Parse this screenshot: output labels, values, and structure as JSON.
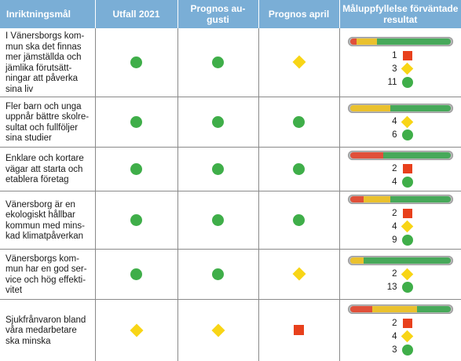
{
  "headers": {
    "goal": "Inriktningsmål",
    "outcome_2021": "Utfall 2021",
    "forecast_august": "Prognos au-\ngusti",
    "forecast_april": "Prognos april",
    "expected_result": "Måluppfyllelse förväntade\nresultat"
  },
  "colors": {
    "header_bg": "#7aaed6",
    "green": "#3fae49",
    "yellow": "#f8d516",
    "red": "#e8401c"
  },
  "rows": [
    {
      "goal": "I Vänersborgs kom-\nmun ska det finnas\nmer jämställda och\njämlika förutsätt-\nningar att påverka\nsina liv",
      "outcome_2021": "green",
      "forecast_august": "green",
      "forecast_april": "yellow",
      "counts": [
        {
          "value": "1",
          "status": "red"
        },
        {
          "value": "3",
          "status": "yellow"
        },
        {
          "value": "11",
          "status": "green"
        }
      ]
    },
    {
      "goal": "Fler barn och unga\nuppnår bättre skolre-\nsultat och fullföljer\nsina studier",
      "outcome_2021": "green",
      "forecast_august": "green",
      "forecast_april": "green",
      "counts": [
        {
          "value": "4",
          "status": "yellow"
        },
        {
          "value": "6",
          "status": "green"
        }
      ]
    },
    {
      "goal": "Enklare och kortare\nvägar att starta och\netablera företag",
      "outcome_2021": "green",
      "forecast_august": "green",
      "forecast_april": "green",
      "counts": [
        {
          "value": "2",
          "status": "red"
        },
        {
          "value": "4",
          "status": "green"
        }
      ]
    },
    {
      "goal": "Vänersborg är en\nekologiskt hållbar\nkommun med mins-\nkad klimatpåverkan",
      "outcome_2021": "green",
      "forecast_august": "green",
      "forecast_april": "green",
      "counts": [
        {
          "value": "2",
          "status": "red"
        },
        {
          "value": "4",
          "status": "yellow"
        },
        {
          "value": "9",
          "status": "green"
        }
      ]
    },
    {
      "goal": "Vänersborgs kom-\nmun har en god ser-\nvice och hög effekti-\nvitet",
      "outcome_2021": "green",
      "forecast_august": "green",
      "forecast_april": "yellow",
      "counts": [
        {
          "value": "2",
          "status": "yellow"
        },
        {
          "value": "13",
          "status": "green"
        }
      ]
    },
    {
      "goal": "Sjukfrånvaron bland\nvåra medarbetare\nska minska",
      "outcome_2021": "yellow",
      "forecast_august": "yellow",
      "forecast_april": "red",
      "counts": [
        {
          "value": "2",
          "status": "red"
        },
        {
          "value": "4",
          "status": "yellow"
        },
        {
          "value": "3",
          "status": "green"
        }
      ]
    }
  ]
}
